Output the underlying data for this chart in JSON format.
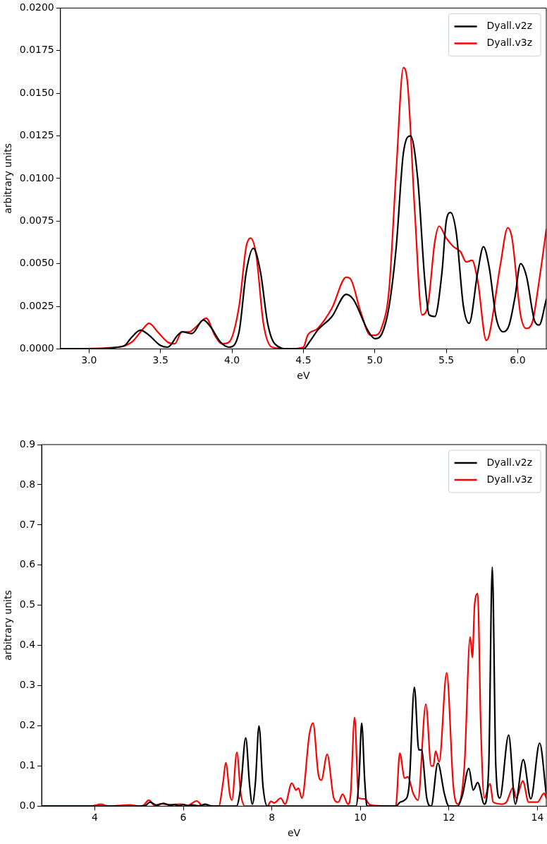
{
  "chart_data": [
    {
      "type": "line",
      "xlabel": "eV",
      "ylabel": "arbitrary units",
      "legend": "top right",
      "grid": false,
      "marker": "none",
      "line_style": "solid",
      "xlim": [
        2.8,
        6.2
      ],
      "ylim": [
        0,
        0.02
      ],
      "xticks": [
        {
          "value": 3,
          "label": "3.0"
        },
        3.5,
        {
          "value": 4,
          "label": "4.0"
        },
        4.5,
        {
          "value": 5,
          "label": "5.0"
        },
        5.5,
        {
          "value": 6,
          "label": "6.0"
        }
      ],
      "yticks": [
        {
          "value": 0,
          "label": "0.0000"
        },
        0.0025,
        {
          "value": 0.005,
          "label": "0.0050"
        },
        0.0075,
        {
          "value": 0.01,
          "label": "0.0100"
        },
        0.0125,
        {
          "value": 0.015,
          "label": "0.0150"
        },
        0.0175,
        {
          "value": 0.02,
          "label": "0.0200"
        }
      ],
      "series": [
        {
          "name": "Dyall.v2z",
          "color": "#000000",
          "x": [
            2.8,
            3.0,
            3.2,
            3.25,
            3.3,
            3.36,
            3.42,
            3.5,
            3.55,
            3.62,
            3.65,
            3.72,
            3.8,
            3.85,
            3.92,
            3.98,
            4.05,
            4.1,
            4.15,
            4.2,
            4.25,
            4.3,
            4.4,
            4.5,
            4.55,
            4.6,
            4.7,
            4.8,
            4.85,
            4.95,
            5.0,
            5.05,
            5.1,
            5.15,
            5.2,
            5.25,
            5.3,
            5.35,
            5.38,
            5.42,
            5.47,
            5.5,
            5.53,
            5.57,
            5.62,
            5.66,
            5.72,
            5.76,
            5.8,
            5.85,
            5.9,
            5.94,
            5.98,
            6.02,
            6.06,
            6.12,
            6.15,
            6.2
          ],
          "values": [
            0,
            0,
            0.0001,
            0.0002,
            0.0007,
            0.0011,
            0.0008,
            0.0002,
            0.0001,
            0.0008,
            0.001,
            0.0009,
            0.0017,
            0.0013,
            0.0004,
            0.0001,
            0.001,
            0.0045,
            0.0059,
            0.0045,
            0.0015,
            0.0003,
            0,
            0,
            0.0005,
            0.0011,
            0.0019,
            0.0032,
            0.0029,
            0.0011,
            0.0006,
            0.0009,
            0.0025,
            0.006,
            0.0115,
            0.0125,
            0.01,
            0.004,
            0.002,
            0.0019,
            0.0045,
            0.0075,
            0.008,
            0.0068,
            0.0025,
            0.0015,
            0.0045,
            0.006,
            0.0048,
            0.0018,
            0.001,
            0.0014,
            0.003,
            0.005,
            0.0043,
            0.0016,
            0.0014,
            0.0029
          ]
        },
        {
          "name": "Dyall.v3z",
          "color": "#ff0000",
          "x": [
            2.8,
            3.2,
            3.3,
            3.38,
            3.42,
            3.48,
            3.55,
            3.6,
            3.65,
            3.7,
            3.75,
            3.82,
            3.88,
            3.93,
            3.98,
            4.05,
            4.1,
            4.13,
            4.17,
            4.22,
            4.28,
            4.4,
            4.5,
            4.53,
            4.6,
            4.7,
            4.8,
            4.83,
            4.9,
            4.97,
            5.0,
            5.05,
            5.1,
            5.15,
            5.2,
            5.23,
            5.28,
            5.33,
            5.37,
            5.42,
            5.45,
            5.5,
            5.55,
            5.6,
            5.64,
            5.68,
            5.72,
            5.78,
            5.8,
            5.88,
            5.93,
            5.96,
            6.02,
            6.06,
            6.1,
            6.15,
            6.2
          ],
          "values": [
            0,
            0.0001,
            0.0004,
            0.0012,
            0.0015,
            0.001,
            0.0004,
            0.0003,
            0.001,
            0.001,
            0.0013,
            0.0018,
            0.0008,
            0.0003,
            0.0004,
            0.0025,
            0.006,
            0.0065,
            0.0055,
            0.0015,
            0.0001,
            0,
            0.0001,
            0.0008,
            0.0012,
            0.0024,
            0.0042,
            0.0041,
            0.0022,
            0.0008,
            0.0008,
            0.0013,
            0.0035,
            0.0105,
            0.0165,
            0.0155,
            0.008,
            0.002,
            0.0025,
            0.0063,
            0.0072,
            0.0065,
            0.006,
            0.0057,
            0.0051,
            0.0052,
            0.004,
            0.0005,
            0.0008,
            0.005,
            0.0071,
            0.0065,
            0.002,
            0.0012,
            0.0015,
            0.004,
            0.007
          ]
        }
      ]
    },
    {
      "type": "line",
      "xlabel": "eV",
      "ylabel": "arbitrary units",
      "legend": "top right",
      "grid": false,
      "marker": "none",
      "line_style": "solid",
      "xlim": [
        2.8,
        14.2
      ],
      "ylim": [
        0,
        0.9
      ],
      "xticks": [
        4,
        6,
        8,
        10,
        12,
        14
      ],
      "yticks": [
        {
          "value": 0,
          "label": "0.0"
        },
        0.1,
        0.2,
        0.3,
        0.4,
        0.5,
        0.6,
        0.7,
        0.8,
        0.9
      ],
      "series": [
        {
          "name": "Dyall.v2z",
          "color": "#000000",
          "x": [
            2.8,
            5.0,
            5.15,
            5.25,
            5.4,
            5.55,
            5.7,
            5.8,
            5.9,
            6.0,
            6.1,
            6.2,
            6.35,
            6.5,
            6.65,
            7.2,
            7.3,
            7.41,
            7.5,
            7.56,
            7.63,
            7.71,
            7.8,
            7.9,
            9.9,
            9.97,
            10.03,
            10.1,
            10.15,
            10.8,
            10.9,
            11.0,
            11.1,
            11.22,
            11.32,
            11.38,
            11.5,
            11.6,
            11.75,
            11.9,
            12.0,
            12.2,
            12.3,
            12.45,
            12.55,
            12.65,
            12.8,
            12.9,
            12.98,
            13.06,
            13.15,
            13.35,
            13.5,
            13.68,
            13.85,
            14.05,
            14.2
          ],
          "values": [
            0,
            0,
            0.002,
            0.01,
            0.002,
            0.007,
            0.002,
            0.004,
            0.001,
            0.004,
            0.001,
            0.003,
            0.001,
            0.005,
            0,
            0,
            0.05,
            0.17,
            0.05,
            0.005,
            0.06,
            0.2,
            0.05,
            0,
            0,
            0.07,
            0.207,
            0.06,
            0,
            0,
            0.01,
            0.015,
            0.05,
            0.296,
            0.14,
            0.14,
            0.02,
            0,
            0.107,
            0.03,
            0,
            0,
            0.025,
            0.094,
            0.04,
            0.059,
            0.005,
            0.1,
            0.595,
            0.1,
            0.02,
            0.177,
            0.005,
            0.116,
            0.018,
            0.157,
            0.03
          ]
        },
        {
          "name": "Dyall.v3z",
          "color": "#ff0000",
          "x": [
            2.8,
            3.9,
            4.15,
            4.3,
            4.8,
            5.0,
            5.1,
            5.22,
            5.35,
            5.5,
            5.7,
            5.95,
            6.1,
            6.3,
            6.45,
            6.8,
            6.9,
            6.96,
            7.05,
            7.1,
            7.21,
            7.3,
            7.4,
            7.9,
            7.98,
            8.05,
            8.2,
            8.3,
            8.45,
            8.55,
            8.6,
            8.68,
            8.85,
            8.93,
            9.05,
            9.12,
            9.25,
            9.4,
            9.5,
            9.6,
            9.72,
            9.78,
            9.87,
            9.96,
            10.1,
            10.2,
            10.3,
            10.8,
            10.89,
            11.0,
            11.07,
            11.2,
            11.3,
            11.48,
            11.6,
            11.65,
            11.7,
            11.78,
            11.95,
            12.1,
            12.2,
            12.35,
            12.48,
            12.53,
            12.58,
            12.65,
            12.72,
            12.8,
            12.93,
            13.0,
            13.2,
            13.3,
            13.45,
            13.52,
            13.67,
            13.8,
            14.0,
            14.15,
            14.2
          ],
          "values": [
            0,
            0,
            0.005,
            0,
            0.003,
            0,
            0.002,
            0.015,
            0.002,
            0.006,
            0.004,
            0.005,
            0.002,
            0.013,
            0,
            0,
            0.06,
            0.108,
            0.03,
            0.015,
            0.134,
            0.03,
            0,
            0,
            0.012,
            0.008,
            0.02,
            0.005,
            0.057,
            0.04,
            0.045,
            0.02,
            0.18,
            0.207,
            0.08,
            0.065,
            0.129,
            0.02,
            0.01,
            0.03,
            0.005,
            0.03,
            0.221,
            0.02,
            0.018,
            0.005,
            0.002,
            0,
            0.132,
            0.07,
            0.073,
            0.03,
            0.015,
            0.254,
            0.1,
            0.1,
            0.137,
            0.11,
            0.332,
            0.05,
            0.005,
            0.1,
            0.421,
            0.37,
            0.5,
            0.529,
            0.2,
            0.02,
            0.056,
            0.01,
            0.005,
            0.01,
            0.046,
            0.02,
            0.063,
            0.01,
            0.01,
            0.032,
            0.02
          ]
        }
      ]
    }
  ]
}
